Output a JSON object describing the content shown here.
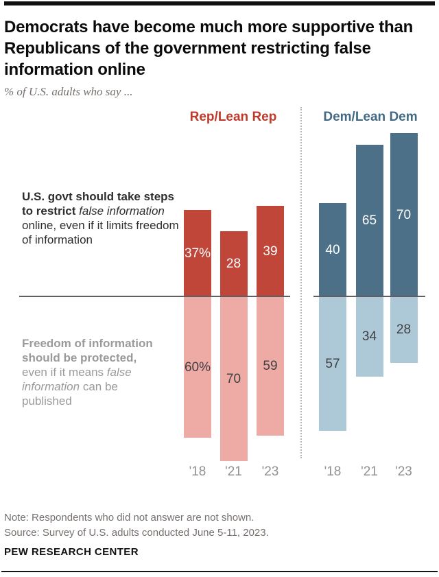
{
  "header": {
    "title_lines": [
      "Democrats have become much more supportive than",
      "Republicans of the government restricting false",
      "information online"
    ],
    "subtitle": "% of U.S. adults who say ..."
  },
  "statements": {
    "restrict": {
      "bold": "U.S. govt should take steps to restrict ",
      "italic": "false information",
      "rest": " online, even if it limits freedom of information"
    },
    "protect": {
      "bold": "Freedom of information should be protected, ",
      "mid": "even if it means ",
      "italic": "false information",
      "rest": " can be published"
    }
  },
  "chart_data": {
    "type": "bar",
    "orientation": "diverging-vertical",
    "categories": [
      "'18",
      "'21",
      "'23"
    ],
    "value_unit": "%",
    "panels": [
      {
        "name": "Rep/Lean Rep",
        "legend_color": "#bf392b",
        "bar_color": "#c0463a",
        "bar_color_light": "#eeaba6",
        "series": [
          {
            "name": "U.S. govt should take steps to restrict false information online",
            "direction": "up",
            "values": [
              37,
              28,
              39
            ],
            "labels": [
              "37%",
              "28",
              "39"
            ]
          },
          {
            "name": "Freedom of information should be protected",
            "direction": "down",
            "values": [
              60,
              70,
              59
            ],
            "labels": [
              "60%",
              "70",
              "59"
            ]
          }
        ]
      },
      {
        "name": "Dem/Lean Dem",
        "legend_color": "#436983",
        "bar_color": "#4d7089",
        "bar_color_light": "#adc9d8",
        "series": [
          {
            "name": "U.S. govt should take steps to restrict false information online",
            "direction": "up",
            "values": [
              40,
              65,
              70
            ],
            "labels": [
              "40",
              "65",
              "70"
            ]
          },
          {
            "name": "Freedom of information should be protected",
            "direction": "down",
            "values": [
              57,
              34,
              28
            ],
            "labels": [
              "57",
              "34",
              "28"
            ]
          }
        ]
      }
    ]
  },
  "footer": {
    "note": "Note: Respondents who did not answer are not shown.",
    "source": "Source: Survey of U.S. adults conducted June 5-11, 2023.",
    "brand": "PEW RESEARCH CENTER"
  }
}
